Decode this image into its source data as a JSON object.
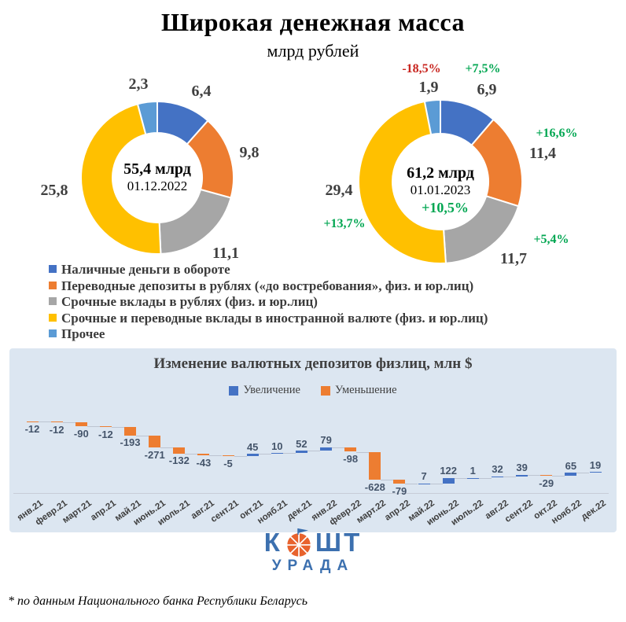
{
  "title": "Широкая денежная масса",
  "subtitle": "млрд рублей",
  "palette": {
    "blue": "#4472C4",
    "orange": "#ED7D31",
    "gray": "#A6A6A6",
    "yellow": "#FFC000",
    "light_blue": "#5B9BD5",
    "green": "#00A651",
    "red": "#C8241E",
    "panel_bg": "#DCE6F1",
    "logo_blue": "#3C70AF",
    "logo_orange": "#E8632E"
  },
  "legend": {
    "items": [
      {
        "label": "Наличные деньги в обороте",
        "color": "#4472C4"
      },
      {
        "label": "Переводные депозиты в рублях («до востребования», физ. и юр.лиц)",
        "color": "#ED7D31"
      },
      {
        "label": "Срочные вклады в рублях (физ. и юр.лиц)",
        "color": "#A6A6A6"
      },
      {
        "label": "Срочные и переводные вклады в иностранной валюте (физ. и юр.лиц)",
        "color": "#FFC000"
      },
      {
        "label": "Прочее",
        "color": "#5B9BD5"
      }
    ]
  },
  "chart_data": [
    {
      "type": "pie",
      "subtype": "donut",
      "center_label": "55,4 млрд",
      "date": "01.12.2022",
      "total": 55.4,
      "segments": [
        {
          "name": "Наличные деньги в обороте",
          "value": 6.4,
          "display": "6,4",
          "color": "#4472C4"
        },
        {
          "name": "Переводные депозиты в рублях («до востребования», физ. и юр.лиц)",
          "value": 9.8,
          "display": "9,8",
          "color": "#ED7D31"
        },
        {
          "name": "Срочные вклады в рублях (физ. и юр.лиц)",
          "value": 11.1,
          "display": "11,1",
          "color": "#A6A6A6"
        },
        {
          "name": "Срочные и переводные вклады в иностранной валюте (физ. и юр.лиц)",
          "value": 25.8,
          "display": "25,8",
          "color": "#FFC000"
        },
        {
          "name": "Прочее",
          "value": 2.3,
          "display": "2,3",
          "color": "#5B9BD5"
        }
      ]
    },
    {
      "type": "pie",
      "subtype": "donut",
      "center_label": "61,2 млрд",
      "date": "01.01.2023",
      "total": 61.2,
      "total_change": "+10,5%",
      "segments": [
        {
          "name": "Наличные деньги в обороте",
          "value": 6.9,
          "display": "6,9",
          "change": "+7,5%",
          "color": "#4472C4"
        },
        {
          "name": "Переводные депозиты в рублях («до востребования», физ. и юр.лиц)",
          "value": 11.4,
          "display": "11,4",
          "change": "+16,6%",
          "color": "#ED7D31"
        },
        {
          "name": "Срочные вклады в рублях (физ. и юр.лиц)",
          "value": 11.7,
          "display": "11,7",
          "change": "+5,4%",
          "color": "#A6A6A6"
        },
        {
          "name": "Срочные и переводные вклады в иностранной валюте (физ. и юр.лиц)",
          "value": 29.4,
          "display": "29,4",
          "change": "+13,7%",
          "color": "#FFC000"
        },
        {
          "name": "Прочее",
          "value": 1.9,
          "display": "1,9",
          "change": "-18,5%",
          "color": "#5B9BD5"
        }
      ]
    },
    {
      "type": "bar",
      "subtype": "waterfall",
      "title": "Изменение валютных депозитов физлиц, млн $",
      "legend": [
        {
          "label": "Увеличение",
          "color": "#4472C4"
        },
        {
          "label": "Уменьшение",
          "color": "#ED7D31"
        }
      ],
      "categories": [
        "янв.21",
        "февр.21",
        "март.21",
        "апр.21",
        "май.21",
        "июнь.21",
        "июль.21",
        "авг.21",
        "сент.21",
        "окт.21",
        "нояб.21",
        "дек.21",
        "янв.22",
        "февр.22",
        "март.22",
        "апр.22",
        "май.22",
        "июнь.22",
        "июль.22",
        "авг.22",
        "сент.22",
        "окт.22",
        "нояб.22",
        "дек.22"
      ],
      "values": [
        -12,
        -12,
        -90,
        -12,
        -193,
        -271,
        -132,
        -43,
        -5,
        45,
        10,
        52,
        79,
        -98,
        -628,
        -79,
        7,
        122,
        1,
        32,
        39,
        -29,
        65,
        19
      ]
    }
  ],
  "logo": {
    "text_k": "К",
    "text_sht": "ШТ",
    "text_bottom": "УРАДА"
  },
  "footnote": "* по данным Национального банка Республики Беларусь"
}
